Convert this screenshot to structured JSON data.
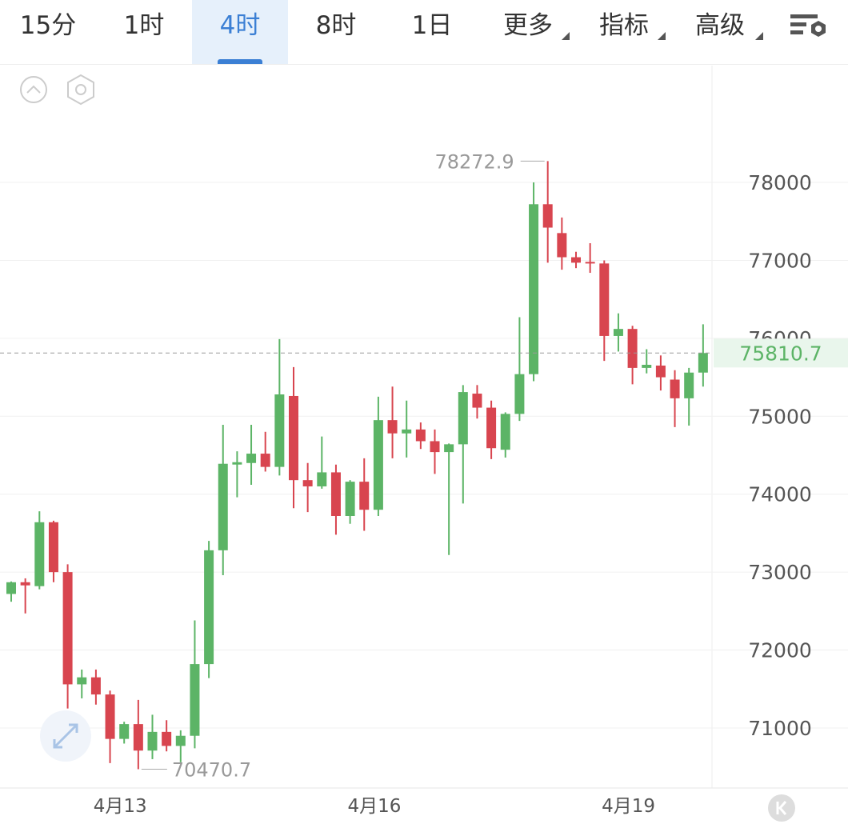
{
  "tabs": [
    "15分",
    "1时",
    "4时",
    "8时",
    "1日",
    "更多",
    "指标",
    "高级"
  ],
  "active_tab": 2,
  "chart_data": {
    "type": "candlestick",
    "categories": [
      null,
      null,
      null,
      null,
      null,
      null,
      null,
      null,
      "4月13",
      null,
      null,
      null,
      null,
      null,
      null,
      null,
      null,
      null,
      null,
      null,
      null,
      null,
      null,
      null,
      null,
      null,
      "4月16",
      null,
      null,
      null,
      null,
      null,
      null,
      null,
      null,
      null,
      null,
      null,
      null,
      null,
      null,
      null,
      null,
      null,
      "4月19",
      null,
      null,
      null,
      null,
      null
    ],
    "series": [
      {
        "up_color": "#5cb466",
        "down_color": "#d8454f",
        "open": [
          72720,
          72870,
          72820,
          73640,
          73000,
          71560,
          71650,
          71430,
          70860,
          71050,
          70710,
          70950,
          70770,
          70900,
          71820,
          73280,
          74380,
          74400,
          74520,
          74350,
          75260,
          74180,
          74100,
          74280,
          73720,
          74160,
          73800,
          74950,
          74780,
          74830,
          74680,
          74540,
          74640,
          75290,
          75110,
          74570,
          75030,
          75540,
          77720,
          77350,
          77040,
          76980,
          76960,
          76030,
          76120,
          75620,
          75650,
          75470,
          75230,
          75560
        ],
        "high": [
          72880,
          72920,
          73780,
          73660,
          73100,
          71750,
          71750,
          71480,
          71080,
          71360,
          71170,
          71100,
          70970,
          72380,
          73400,
          74890,
          74550,
          74890,
          74800,
          75990,
          75630,
          74400,
          74740,
          74380,
          74180,
          74460,
          75250,
          75380,
          75200,
          74920,
          74830,
          74650,
          75400,
          75400,
          75200,
          75050,
          76270,
          78000,
          78272.9,
          77550,
          77110,
          77220,
          77000,
          76320,
          76160,
          75860,
          75780,
          75590,
          75620,
          76180
        ],
        "low": [
          72620,
          72470,
          72780,
          72870,
          71250,
          71380,
          71300,
          70550,
          70800,
          70470.7,
          70600,
          70700,
          70560,
          70740,
          71640,
          72960,
          73960,
          74120,
          74290,
          74240,
          73820,
          73770,
          74070,
          73480,
          73620,
          73530,
          73720,
          74460,
          74470,
          74580,
          74260,
          73220,
          73880,
          74970,
          74450,
          74470,
          74940,
          75450,
          76970,
          76880,
          76900,
          76840,
          75710,
          75830,
          75410,
          75550,
          75330,
          74860,
          74880,
          75380
        ],
        "close": [
          72870,
          72830,
          73640,
          73000,
          71560,
          71650,
          71430,
          70860,
          71050,
          70710,
          70950,
          70770,
          70900,
          71820,
          73280,
          74390,
          74410,
          74520,
          74350,
          75280,
          74180,
          74100,
          74280,
          73720,
          74160,
          73800,
          74950,
          74780,
          74830,
          74680,
          74540,
          74640,
          75310,
          75110,
          74590,
          75030,
          75540,
          77720,
          77420,
          77040,
          76970,
          76960,
          76030,
          76120,
          75620,
          75660,
          75500,
          75230,
          75560,
          75810.7
        ]
      }
    ],
    "ylim": [
      70230,
      79468
    ],
    "yticks": [
      71000,
      72000,
      73000,
      74000,
      75000,
      76000,
      77000,
      78000
    ],
    "grid": true,
    "high_annotation": 78272.9,
    "low_annotation": 70470.7,
    "last_price": 75810.7
  }
}
